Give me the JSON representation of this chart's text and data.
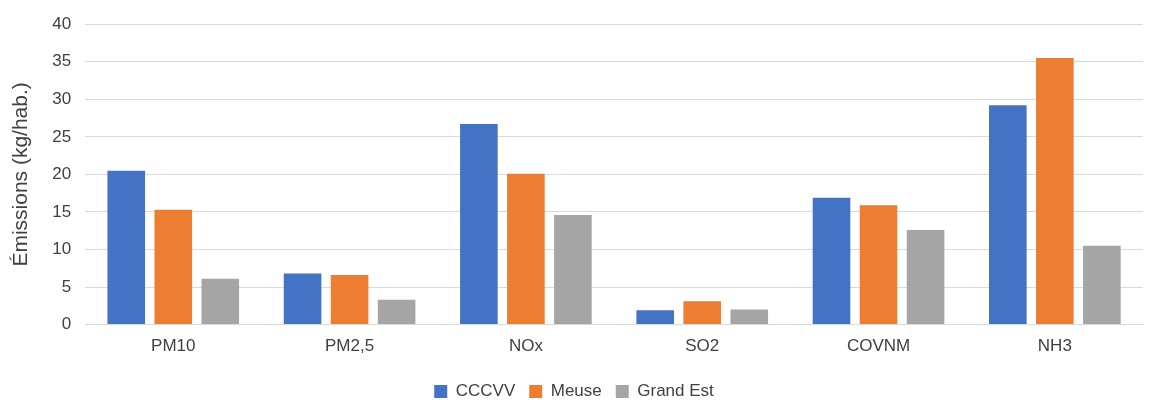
{
  "chart_data": {
    "type": "bar",
    "ylabel": "Émissions (kg/hab.)",
    "categories": [
      "PM10",
      "PM2,5",
      "NOx",
      "SO2",
      "COVNM",
      "NH3"
    ],
    "series": [
      {
        "name": "CCCVV",
        "color": "#4472c4",
        "values": [
          20.5,
          6.8,
          26.7,
          1.9,
          16.9,
          29.2
        ]
      },
      {
        "name": "Meuse",
        "color": "#ed7d31",
        "values": [
          15.3,
          6.6,
          20.1,
          3.1,
          15.9,
          35.5
        ]
      },
      {
        "name": "Grand Est",
        "color": "#a5a5a5",
        "values": [
          6.1,
          3.3,
          14.6,
          2.0,
          12.6,
          10.5
        ]
      }
    ],
    "ylim": [
      0,
      40
    ],
    "yticks": [
      0,
      5,
      10,
      15,
      20,
      25,
      30,
      35,
      40
    ],
    "grid": "y",
    "legend": "bottom"
  }
}
